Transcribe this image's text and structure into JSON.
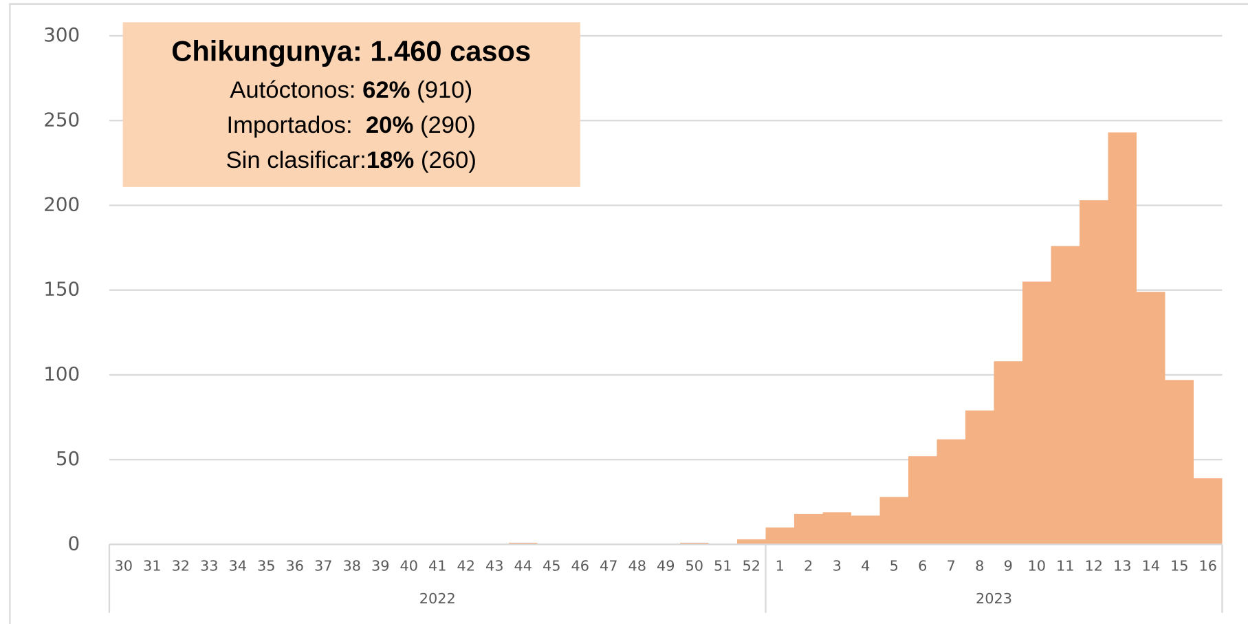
{
  "chart_data": {
    "type": "bar",
    "annotation": {
      "title": "Chikungunya: 1.460 casos",
      "lines": [
        {
          "label": "Autóctonos: ",
          "percent": "62%",
          "count": " (910)"
        },
        {
          "label": "Importados:  ",
          "percent": "20%",
          "count": " (290)"
        },
        {
          "label": "Sin clasificar:",
          "percent": "18%",
          "count": " (260)"
        }
      ]
    },
    "groups": [
      {
        "name": "2022",
        "categories": [
          "30",
          "31",
          "32",
          "33",
          "34",
          "35",
          "36",
          "37",
          "38",
          "39",
          "40",
          "41",
          "42",
          "43",
          "44",
          "45",
          "46",
          "47",
          "48",
          "49",
          "50",
          "51",
          "52"
        ],
        "values": [
          0,
          0,
          0,
          0,
          0,
          0,
          0,
          0,
          0,
          0,
          0,
          0,
          0,
          0,
          1,
          0,
          0,
          0,
          0,
          0,
          1,
          0,
          3
        ]
      },
      {
        "name": "2023",
        "categories": [
          "1",
          "2",
          "3",
          "4",
          "5",
          "6",
          "7",
          "8",
          "9",
          "10",
          "11",
          "12",
          "13",
          "14",
          "15",
          "16"
        ],
        "values": [
          10,
          18,
          19,
          17,
          28,
          52,
          62,
          79,
          108,
          155,
          176,
          203,
          243,
          149,
          97,
          39
        ]
      }
    ],
    "color": "#f4b183",
    "ylim": [
      0,
      300
    ],
    "yticks": [
      0,
      50,
      100,
      150,
      200,
      250,
      300
    ],
    "grid": true
  }
}
